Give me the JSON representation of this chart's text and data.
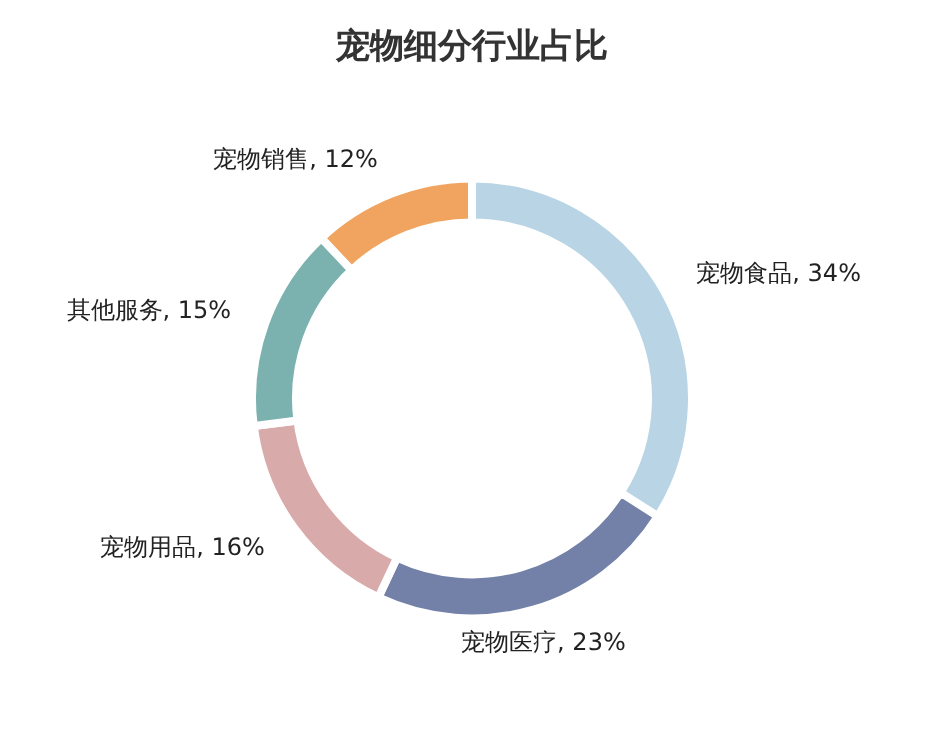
{
  "chart_data": {
    "type": "donut",
    "title": "宠物细分行业占比",
    "categories": [
      "宠物食品",
      "宠物医疗",
      "宠物用品",
      "其他服务",
      "宠物销售"
    ],
    "values": [
      34,
      23,
      16,
      15,
      12
    ],
    "value_labels": [
      "34%",
      "23%",
      "16%",
      "15%",
      "12%"
    ],
    "colors": [
      "#b9d5e5",
      "#7380a7",
      "#d9aaaa",
      "#7bb1ae",
      "#f1a45f"
    ],
    "legend": false
  }
}
